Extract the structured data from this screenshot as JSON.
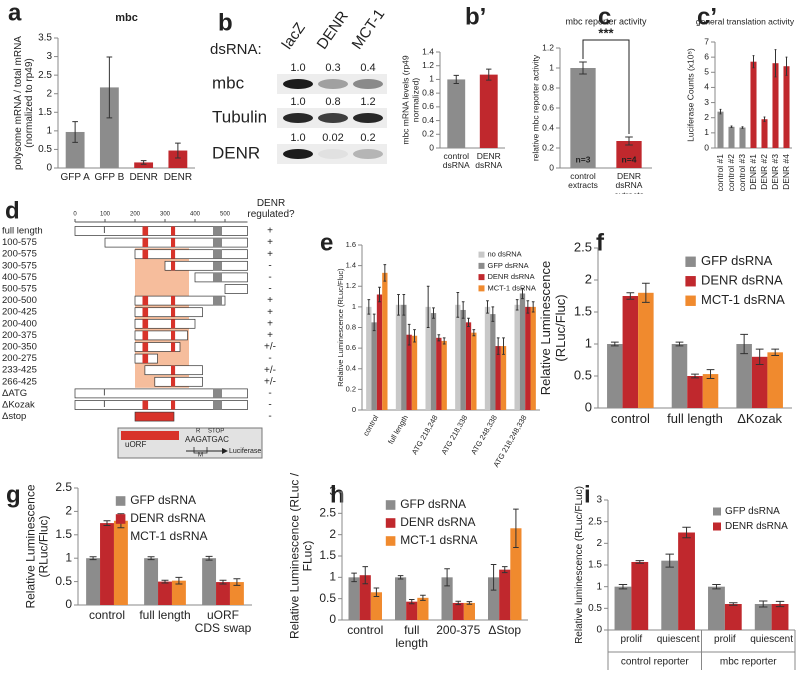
{
  "chart_data": [
    {
      "type": "bar",
      "label": "a",
      "title": "mbc",
      "ylabel": "polysome mRNA / total mRNA (normalized to rp49)",
      "categories": [
        "GFP A",
        "GFP B",
        "DENR",
        "DENR"
      ],
      "values": [
        0.97,
        2.17,
        0.15,
        0.47
      ],
      "errors": [
        0.28,
        0.82,
        0.05,
        0.2
      ],
      "colors": [
        "#8c8c8c",
        "#8c8c8c",
        "#c0282d",
        "#c0282d"
      ],
      "ylim": [
        0,
        3.5
      ],
      "yticks": [
        0,
        0.5,
        1,
        1.5,
        2,
        2.5,
        3,
        3.5
      ]
    },
    {
      "type": "bar",
      "label": "b’",
      "ylabel": "mbc mRNA levels (rp49 normalized)",
      "categories": [
        "control dsRNA",
        "DENR dsRNA"
      ],
      "values": [
        1.0,
        1.07
      ],
      "errors": [
        0.06,
        0.08
      ],
      "colors": [
        "#8c8c8c",
        "#c0282d"
      ],
      "ylim": [
        0,
        1.4
      ],
      "yticks": [
        0,
        0.2,
        0.4,
        0.6,
        0.8,
        1,
        1.2,
        1.4
      ]
    },
    {
      "type": "bar",
      "label": "c",
      "title": "mbc reporter activity",
      "ylabel": "relative mbc reporter activity",
      "categories": [
        "control extracts",
        "DENR dsRNA extracts"
      ],
      "values": [
        1.0,
        0.27
      ],
      "errors": [
        0.06,
        0.04
      ],
      "colors": [
        "#8c8c8c",
        "#c0282d"
      ],
      "bar_labels": [
        "n=3",
        "n=4"
      ],
      "annotation": "***",
      "ylim": [
        0,
        1.2
      ],
      "yticks": [
        0,
        0.2,
        0.4,
        0.6,
        0.8,
        1,
        1.2
      ]
    },
    {
      "type": "bar",
      "label": "c’",
      "title": "general translation activity",
      "ylabel": "Luciferase Counts (x10⁵)",
      "categories": [
        "control #1",
        "control #2",
        "control #3",
        "DENR #1",
        "DENR #2",
        "DENR #3",
        "DENR #4"
      ],
      "values": [
        2.4,
        1.4,
        1.35,
        5.7,
        1.9,
        5.6,
        5.4
      ],
      "errors": [
        0.15,
        0.05,
        0.05,
        0.4,
        0.15,
        0.9,
        0.6
      ],
      "colors": [
        "#8c8c8c",
        "#8c8c8c",
        "#8c8c8c",
        "#c0282d",
        "#c0282d",
        "#c0282d",
        "#c0282d"
      ],
      "ylim": [
        0,
        7
      ],
      "yticks": [
        0,
        1,
        2,
        3,
        4,
        5,
        6,
        7
      ]
    },
    {
      "type": "bar",
      "label": "e",
      "ylabel": "Relative Luminescence (RLuc/Fluc)",
      "legend": "upper right",
      "categories": [
        "control",
        "full length",
        "ATG 218,248",
        "ATG 218,338",
        "ATG 248,338",
        "ATG 218,248,338"
      ],
      "series": [
        {
          "name": "no dsRNA",
          "color": "#c8c8c8",
          "values": [
            1.0,
            1.02,
            1.0,
            1.02,
            1.0,
            1.02
          ],
          "errors": [
            0.07,
            0.1,
            0.2,
            0.12,
            0.06,
            0.05
          ]
        },
        {
          "name": "GFP dsRNA",
          "color": "#8c8c8c",
          "values": [
            0.85,
            1.02,
            0.94,
            0.97,
            0.93,
            1.13
          ],
          "errors": [
            0.08,
            0.1,
            0.05,
            0.08,
            0.07,
            0.05
          ]
        },
        {
          "name": "DENR dsRNA",
          "color": "#c0282d",
          "values": [
            1.12,
            0.73,
            0.7,
            0.85,
            0.62,
            1.0
          ],
          "errors": [
            0.07,
            0.1,
            0.03,
            0.04,
            0.08,
            0.06
          ]
        },
        {
          "name": "MCT-1 dsRNA",
          "color": "#f08a2e",
          "values": [
            1.33,
            0.72,
            0.67,
            0.75,
            0.62,
            1.0
          ],
          "errors": [
            0.08,
            0.06,
            0.03,
            0.03,
            0.08,
            0.05
          ]
        }
      ],
      "ylim": [
        0,
        1.6
      ],
      "yticks": [
        0,
        0.2,
        0.4,
        0.6,
        0.8,
        1,
        1.2,
        1.4,
        1.6
      ]
    },
    {
      "type": "bar",
      "label": "f",
      "ylabel": "Relative Luminescence (RLuc/Fluc)",
      "legend": "upper right",
      "categories": [
        "control",
        "full length",
        "ΔKozak"
      ],
      "series": [
        {
          "name": "GFP dsRNA",
          "color": "#8c8c8c",
          "values": [
            1.0,
            1.0,
            1.0
          ],
          "errors": [
            0.03,
            0.03,
            0.15
          ]
        },
        {
          "name": "DENR dsRNA",
          "color": "#c0282d",
          "values": [
            1.75,
            0.5,
            0.8
          ],
          "errors": [
            0.05,
            0.03,
            0.12
          ]
        },
        {
          "name": "MCT-1 dsRNA",
          "color": "#f08a2e",
          "values": [
            1.8,
            0.53,
            0.87
          ],
          "errors": [
            0.15,
            0.07,
            0.05
          ]
        }
      ],
      "ylim": [
        0,
        2.5
      ],
      "yticks": [
        0,
        0.5,
        1,
        1.5,
        2,
        2.5
      ]
    },
    {
      "type": "bar",
      "label": "g",
      "ylabel": "Relative Luminescence (RLuc/Fluc)",
      "legend": "upper center",
      "categories": [
        "control",
        "full length",
        "uORF CDS swap"
      ],
      "series": [
        {
          "name": "GFP dsRNA",
          "color": "#8c8c8c",
          "values": [
            1.0,
            1.0,
            1.0
          ],
          "errors": [
            0.03,
            0.03,
            0.04
          ]
        },
        {
          "name": "DENR dsRNA",
          "color": "#c0282d",
          "values": [
            1.75,
            0.5,
            0.49
          ],
          "errors": [
            0.05,
            0.03,
            0.04
          ]
        },
        {
          "name": "MCT-1 dsRNA",
          "color": "#f08a2e",
          "values": [
            1.8,
            0.52,
            0.49
          ],
          "errors": [
            0.15,
            0.07,
            0.07
          ]
        }
      ],
      "ylim": [
        0,
        2.5
      ],
      "yticks": [
        0,
        0.5,
        1,
        1.5,
        2,
        2.5
      ]
    },
    {
      "type": "bar",
      "label": "h",
      "ylabel": "Relative Luminescence (RLuc / FLuc)",
      "legend": "upper center",
      "categories": [
        "control",
        "full length",
        "200-375",
        "ΔStop"
      ],
      "series": [
        {
          "name": "GFP dsRNA",
          "color": "#8c8c8c",
          "values": [
            1.0,
            1.0,
            1.0,
            1.0
          ],
          "errors": [
            0.1,
            0.04,
            0.2,
            0.3
          ]
        },
        {
          "name": "DENR dsRNA",
          "color": "#c0282d",
          "values": [
            1.05,
            0.43,
            0.4,
            1.18
          ],
          "errors": [
            0.2,
            0.05,
            0.04,
            0.07
          ]
        },
        {
          "name": "MCT-1 dsRNA",
          "color": "#f08a2e",
          "values": [
            0.65,
            0.52,
            0.4,
            2.15
          ],
          "errors": [
            0.1,
            0.06,
            0.03,
            0.45
          ]
        }
      ],
      "ylim": [
        0,
        3
      ],
      "yticks": [
        0,
        0.5,
        1,
        1.5,
        2,
        2.5,
        3
      ]
    },
    {
      "type": "bar",
      "label": "i",
      "ylabel": "Relative luminescence (RLuc/FLuc)",
      "legend": "upper right",
      "categories": [
        "prolif",
        "quiescent",
        "prolif",
        "quiescent"
      ],
      "group_labels": [
        "control reporter",
        "mbc reporter"
      ],
      "series": [
        {
          "name": "GFP dsRNA",
          "color": "#8c8c8c",
          "values": [
            1.0,
            1.6,
            1.0,
            0.6
          ],
          "errors": [
            0.05,
            0.15,
            0.05,
            0.07
          ]
        },
        {
          "name": "DENR dsRNA",
          "color": "#c0282d",
          "values": [
            1.57,
            2.25,
            0.6,
            0.6
          ],
          "errors": [
            0.03,
            0.12,
            0.03,
            0.06
          ]
        }
      ],
      "ylim": [
        0,
        3
      ],
      "yticks": [
        0,
        0.5,
        1,
        1.5,
        2,
        2.5,
        3
      ]
    }
  ],
  "gel": {
    "label": "b",
    "row_header": "dsRNA:",
    "lanes": [
      "lacZ",
      "DENR",
      "MCT-1"
    ],
    "rows": [
      {
        "name": "mbc",
        "levels": [
          "1.0",
          "0.3",
          "0.4"
        ]
      },
      {
        "name": "Tubulin",
        "levels": [
          "1.0",
          "0.8",
          "1.2"
        ]
      },
      {
        "name": "DENR",
        "levels": [
          "1.0",
          "0.02",
          "0.2"
        ]
      }
    ]
  },
  "diagram": {
    "label": "d",
    "header": "DENR regulated?",
    "scale": [
      "0",
      "100",
      "200",
      "300",
      "400",
      "500"
    ],
    "constructs": [
      {
        "name": "full length",
        "regulated": "+"
      },
      {
        "name": "100-575",
        "regulated": "+"
      },
      {
        "name": "200-575",
        "regulated": "+"
      },
      {
        "name": "300-575",
        "regulated": "-"
      },
      {
        "name": "400-575",
        "regulated": "-"
      },
      {
        "name": "500-575",
        "regulated": "-"
      },
      {
        "name": "200-500",
        "regulated": "+"
      },
      {
        "name": "200-425",
        "regulated": "+"
      },
      {
        "name": "200-400",
        "regulated": "+"
      },
      {
        "name": "200-375",
        "regulated": "+"
      },
      {
        "name": "200-350",
        "regulated": "+/-"
      },
      {
        "name": "200-275",
        "regulated": "-"
      },
      {
        "name": "233-425",
        "regulated": "+/-"
      },
      {
        "name": "266-425",
        "regulated": "+/-"
      },
      {
        "name": "ΔATG",
        "regulated": "-"
      },
      {
        "name": "ΔKozak",
        "regulated": "-"
      },
      {
        "name": "Δstop",
        "regulated": "-"
      }
    ],
    "inset": {
      "uorf": "uORF",
      "r": "R",
      "stop": "STOP",
      "sequence": "AAGATGAC",
      "m": "M",
      "reporter": "Luciferase"
    }
  }
}
